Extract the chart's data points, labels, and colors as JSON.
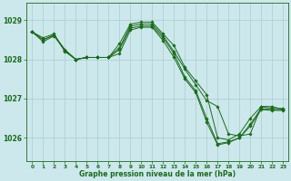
{
  "title": "Graphe pression niveau de la mer (hPa)",
  "background_color": "#cce8ec",
  "grid_color": "#aacccc",
  "line_color": "#1a6b1a",
  "marker_color": "#1a6b1a",
  "x_ticks": [
    0,
    1,
    2,
    3,
    4,
    5,
    6,
    7,
    8,
    9,
    10,
    11,
    12,
    13,
    14,
    15,
    16,
    17,
    18,
    19,
    20,
    21,
    22,
    23
  ],
  "y_ticks": [
    1026,
    1027,
    1028,
    1029
  ],
  "ylim": [
    1025.4,
    1029.45
  ],
  "xlim": [
    -0.5,
    23.5
  ],
  "series": [
    [
      1028.7,
      1028.55,
      1028.65,
      1028.2,
      1028.0,
      1028.05,
      1028.05,
      1028.05,
      1028.3,
      1028.85,
      1028.9,
      1028.9,
      1028.6,
      1028.2,
      1027.75,
      1027.35,
      1026.95,
      1026.8,
      1026.1,
      1026.05,
      1026.1,
      1026.8,
      1026.75,
      1026.75
    ],
    [
      1028.7,
      1028.5,
      1028.62,
      1028.25,
      1028.0,
      1028.05,
      1028.05,
      1028.05,
      1028.4,
      1028.9,
      1028.95,
      1028.95,
      1028.65,
      1028.35,
      1027.8,
      1027.45,
      1027.1,
      1026.0,
      1025.95,
      1026.1,
      1026.5,
      1026.8,
      1026.8,
      1026.72
    ],
    [
      1028.7,
      1028.5,
      1028.62,
      1028.22,
      1028.0,
      1028.05,
      1028.05,
      1028.05,
      1028.25,
      1028.8,
      1028.85,
      1028.85,
      1028.55,
      1028.15,
      1027.55,
      1027.2,
      1026.5,
      1025.85,
      1025.9,
      1026.0,
      1026.35,
      1026.75,
      1026.72,
      1026.72
    ],
    [
      1028.7,
      1028.45,
      1028.6,
      1028.22,
      1028.0,
      1028.05,
      1028.05,
      1028.05,
      1028.15,
      1028.75,
      1028.82,
      1028.82,
      1028.48,
      1028.05,
      1027.5,
      1027.15,
      1026.4,
      1025.82,
      1025.88,
      1026.0,
      1026.3,
      1026.72,
      1026.7,
      1026.7
    ]
  ]
}
